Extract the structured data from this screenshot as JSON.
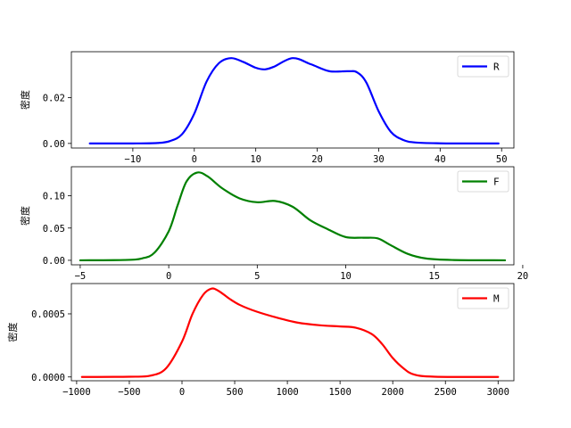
{
  "chart_data": [
    {
      "type": "line",
      "ylabel": "密度",
      "legend": "upper right",
      "xlim": [
        -20,
        52
      ],
      "ylim": [
        -0.002,
        0.04
      ],
      "xticks": [
        -10,
        0,
        10,
        20,
        30,
        40,
        50
      ],
      "xtick_labels": [
        "−10",
        "0",
        "10",
        "20",
        "30",
        "40",
        "50"
      ],
      "yticks": [
        0.0,
        0.02
      ],
      "ytick_labels": [
        "0.00",
        "0.02"
      ],
      "series": [
        {
          "name": "R",
          "color": "#0000ff",
          "x": [
            -17,
            -10,
            -6,
            -4,
            -2,
            0,
            2,
            4,
            6,
            8,
            10,
            11.5,
            13,
            16,
            19,
            22,
            25,
            26.5,
            28,
            30,
            32,
            34,
            36,
            40,
            44,
            49.5
          ],
          "y": [
            0,
            0,
            0.0002,
            0.001,
            0.004,
            0.013,
            0.027,
            0.035,
            0.0372,
            0.0355,
            0.033,
            0.0323,
            0.0335,
            0.0372,
            0.0345,
            0.0315,
            0.0315,
            0.031,
            0.0265,
            0.014,
            0.005,
            0.0015,
            0.0004,
            5e-05,
            0,
            0
          ]
        }
      ]
    },
    {
      "type": "line",
      "ylabel": "密度",
      "legend": "upper right",
      "xlim": [
        -5.5,
        19.5
      ],
      "ylim": [
        -0.007,
        0.145
      ],
      "xticks": [
        -5,
        0,
        5,
        10,
        15,
        20
      ],
      "xtick_labels": [
        "−5",
        "0",
        "5",
        "10",
        "15",
        "20"
      ],
      "yticks": [
        0.0,
        0.05,
        0.1
      ],
      "ytick_labels": [
        "0.00",
        "0.05",
        "0.10"
      ],
      "series": [
        {
          "name": "F",
          "color": "#008000",
          "x": [
            -5,
            -2.5,
            -1.5,
            -0.8,
            0,
            0.5,
            1,
            1.6,
            2.2,
            3,
            4,
            5,
            6,
            7,
            8,
            9,
            10,
            11,
            11.8,
            12.5,
            13.5,
            14.5,
            16,
            19
          ],
          "y": [
            0,
            0.0005,
            0.003,
            0.012,
            0.045,
            0.085,
            0.122,
            0.136,
            0.13,
            0.112,
            0.096,
            0.09,
            0.092,
            0.083,
            0.062,
            0.048,
            0.036,
            0.035,
            0.034,
            0.024,
            0.01,
            0.003,
            0.0005,
            0
          ]
        }
      ]
    },
    {
      "type": "line",
      "ylabel": "密度",
      "legend": "upper right",
      "xlim": [
        -1050,
        3150
      ],
      "ylim": [
        -3e-05,
        0.00074
      ],
      "xticks": [
        -1000,
        -500,
        0,
        500,
        1000,
        1500,
        2000,
        2500,
        3000
      ],
      "xtick_labels": [
        "−1000",
        "−500",
        "0",
        "500",
        "1000",
        "1500",
        "2000",
        "2500",
        "3000"
      ],
      "yticks": [
        0.0,
        0.0005
      ],
      "ytick_labels": [
        "0.0000",
        "0.0005"
      ],
      "series": [
        {
          "name": "M",
          "color": "#ff0000",
          "x": [
            -950,
            -500,
            -300,
            -150,
            0,
            100,
            200,
            280,
            350,
            450,
            550,
            700,
            900,
            1100,
            1300,
            1500,
            1650,
            1800,
            1900,
            2000,
            2100,
            2200,
            2400,
            3000
          ],
          "y": [
            0,
            2e-06,
            1e-05,
            7e-05,
            0.00028,
            0.0005,
            0.00065,
            0.0007,
            0.00068,
            0.00062,
            0.00057,
            0.00052,
            0.00047,
            0.00043,
            0.00041,
            0.0004,
            0.00039,
            0.00034,
            0.00026,
            0.00015,
            7e-05,
            2e-05,
            2e-06,
            0
          ]
        }
      ]
    }
  ]
}
